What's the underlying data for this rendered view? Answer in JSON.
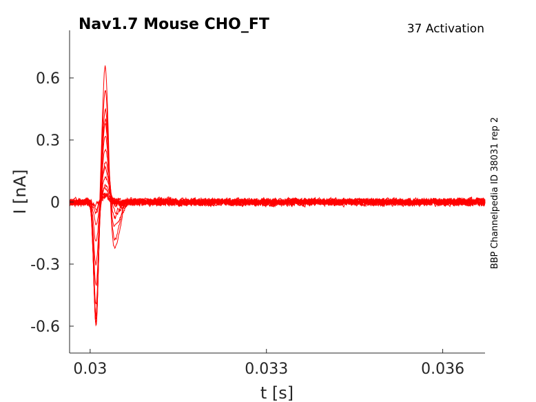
{
  "chart_data": {
    "type": "line",
    "title": "Nav1.7  Mouse  CHO_FT",
    "subtitle": "37  Activation",
    "side_note": "BBP Channelpedia ID 38031 rep 2",
    "xlabel": "t [s]",
    "ylabel": "I [nA]",
    "xlim": [
      0.02965,
      0.03672
    ],
    "ylim": [
      -0.73,
      0.83
    ],
    "xticks": [
      0.03,
      0.033,
      0.036
    ],
    "xtick_labels": [
      "0.03",
      "0.033",
      "0.036"
    ],
    "yticks": [
      -0.6,
      -0.3,
      0,
      0.3,
      0.6
    ],
    "ytick_labels": [
      "-0.6",
      "-0.3",
      "0",
      "0.3",
      "0.6"
    ],
    "grid": false,
    "legend": "none",
    "line_color": "#ff0000",
    "trace_count": 16,
    "traces": {
      "neg_peak_time": 0.0301,
      "neg_peak": [
        -0.02,
        -0.03,
        -0.05,
        -0.1,
        -0.2,
        -0.3,
        -0.4,
        -0.5,
        -0.55,
        -0.58,
        -0.59,
        -0.59,
        -0.59,
        -0.58,
        -0.57,
        -0.56
      ],
      "pos_peak_time": 0.03026,
      "pos_peak": [
        0.03,
        0.03,
        0.04,
        0.05,
        0.06,
        0.08,
        0.12,
        0.16,
        0.2,
        0.26,
        0.32,
        0.38,
        0.42,
        0.47,
        0.56,
        0.7
      ],
      "tail_min": [
        0,
        0,
        0,
        0,
        0,
        0,
        0,
        0,
        0,
        0,
        -0.02,
        -0.05,
        -0.08,
        -0.12,
        -0.18,
        -0.23
      ],
      "noise_amplitude": 0.012
    }
  }
}
